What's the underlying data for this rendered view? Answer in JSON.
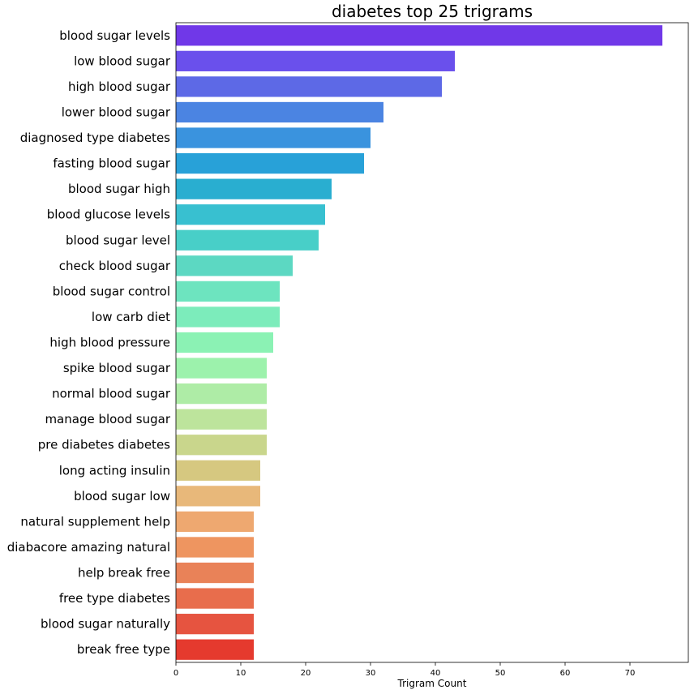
{
  "chart_data": {
    "type": "bar",
    "orientation": "horizontal",
    "title": "diabetes top 25 trigrams",
    "xlabel": "Trigram Count",
    "ylabel": "",
    "xlim": [
      0,
      79
    ],
    "xticks": [
      0,
      10,
      20,
      30,
      40,
      50,
      60,
      70
    ],
    "grid": false,
    "legend": "none",
    "categories": [
      "blood sugar levels",
      "low blood sugar",
      "high blood sugar",
      "lower blood sugar",
      "diagnosed type diabetes",
      "fasting blood sugar",
      "blood sugar high",
      "blood glucose levels",
      "blood sugar level",
      "check blood sugar",
      "blood sugar control",
      "low carb diet",
      "high blood pressure",
      "spike blood sugar",
      "normal blood sugar",
      "manage blood sugar",
      "pre diabetes diabetes",
      "long acting insulin",
      "blood sugar low",
      "natural supplement help",
      "diabacore amazing natural",
      "help break free",
      "free type diabetes",
      "blood sugar naturally",
      "break free type"
    ],
    "values": [
      75,
      43,
      41,
      32,
      30,
      29,
      24,
      23,
      22,
      18,
      16,
      16,
      15,
      14,
      14,
      14,
      14,
      13,
      13,
      12,
      12,
      12,
      12,
      12,
      12
    ],
    "colors": [
      "#7038e8",
      "#6a50ec",
      "#5d69e6",
      "#4b84e2",
      "#3a93de",
      "#28a1d8",
      "#29aed0",
      "#38c0d0",
      "#48cfc8",
      "#5cd8c2",
      "#6de4bf",
      "#7cecbb",
      "#8bf2b4",
      "#9cf2ac",
      "#aeeca6",
      "#bde49c",
      "#c9d68c",
      "#d6c880",
      "#e8b87a",
      "#eea870",
      "#ee9560",
      "#e98258",
      "#e86d4c",
      "#e65440",
      "#e53a2e"
    ]
  }
}
